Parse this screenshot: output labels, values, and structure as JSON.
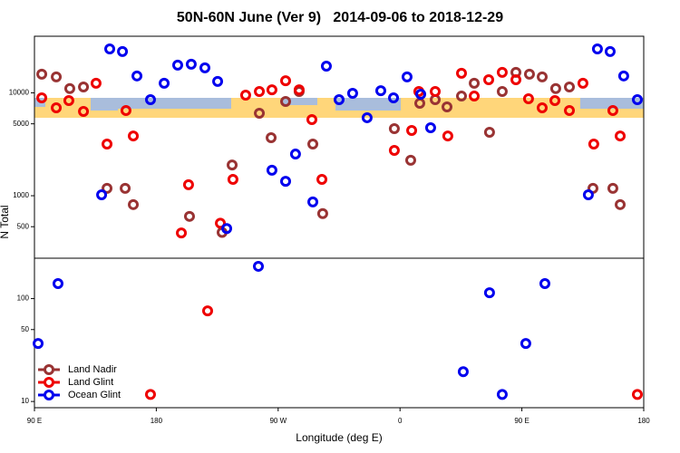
{
  "chart_data": {
    "type": "scatter",
    "title": "50N-60N June (Ver 9)   2014-09-06 to 2018-12-29",
    "xlabel": "Longitude (deg E)",
    "ylabel": "N Total",
    "log_y": true,
    "legend": "lower left",
    "xlim": [
      90,
      540
    ],
    "xticks": [
      {
        "value": 90,
        "label": "90 E"
      },
      {
        "value": 180,
        "label": "180"
      },
      {
        "value": 270,
        "label": "90 W"
      },
      {
        "value": 360,
        "label": "0"
      },
      {
        "value": 450,
        "label": "90 E"
      },
      {
        "value": 540,
        "label": "180"
      }
    ],
    "ylim": [
      8.7,
      35500
    ],
    "yticks": [
      10,
      50,
      100,
      500,
      1000,
      5000,
      10000
    ],
    "series": [
      {
        "name": "Land Nadir",
        "color": "#993333",
        "x": [
          95.4,
          106.1,
          116.1,
          126.2,
          143.6,
          157.0,
          163.0,
          204.5,
          228.6,
          236.0,
          256.1,
          264.8,
          275.5,
          285.5,
          295.6,
          302.9,
          355.8,
          367.9,
          374.6,
          386.0,
          394.7,
          405.4,
          414.8,
          426.1,
          435.5,
          445.6,
          455.6,
          465.0,
          475.0,
          485.1,
          502.5,
          517.2,
          522.6
        ],
        "values": [
          15200,
          14300,
          11000,
          11400,
          1180,
          1180,
          820,
          630,
          440,
          1990,
          6340,
          3660,
          8240,
          10300,
          3180,
          670,
          4490,
          2210,
          7920,
          8590,
          7300,
          9300,
          12400,
          4140,
          10300,
          15800,
          15200,
          14300,
          11000,
          11400,
          1180,
          1180,
          820
        ]
      },
      {
        "name": "Land Glint",
        "color": "#ee0000",
        "x": [
          95.4,
          106.1,
          115.4,
          126.2,
          135.5,
          143.6,
          157.6,
          163.0,
          175.7,
          198.5,
          203.8,
          217.9,
          227.3,
          236.6,
          246.0,
          256.1,
          265.4,
          275.5,
          285.5,
          294.9,
          302.3,
          355.8,
          368.6,
          373.9,
          386.0,
          395.3,
          405.4,
          414.8,
          425.5,
          435.5,
          445.6,
          454.9,
          465.0,
          474.4,
          485.1,
          495.1,
          503.1,
          517.2,
          522.6,
          535.3
        ],
        "values": [
          8950,
          7160,
          8410,
          6590,
          12400,
          3180,
          6730,
          3810,
          11.7,
          435,
          1280,
          76,
          540,
          1440,
          9500,
          10300,
          10700,
          13100,
          10700,
          5500,
          1440,
          2760,
          4310,
          10300,
          10300,
          3810,
          15500,
          9300,
          13400,
          15800,
          13400,
          8770,
          7160,
          8410,
          6730,
          12400,
          3180,
          6730,
          3810,
          11.7
        ]
      },
      {
        "name": "Ocean Glint",
        "color": "#0000ee",
        "x": [
          92.7,
          107.4,
          139.6,
          145.6,
          155.0,
          165.7,
          175.7,
          185.8,
          195.8,
          205.8,
          215.9,
          225.3,
          232.0,
          255.4,
          265.4,
          275.5,
          282.8,
          295.6,
          305.6,
          315.0,
          325.0,
          335.7,
          345.8,
          355.2,
          365.2,
          375.3,
          382.6,
          406.7,
          426.1,
          435.5,
          452.9,
          467.0,
          499.1,
          505.8,
          515.2,
          525.2,
          535.3
        ],
        "values": [
          36.6,
          140,
          1020,
          26700,
          25200,
          14600,
          8590,
          12400,
          18600,
          19000,
          17500,
          12900,
          480,
          206,
          1770,
          1380,
          2540,
          870,
          18200,
          8590,
          9900,
          5730,
          10500,
          8950,
          14300,
          9700,
          4580,
          19.5,
          114,
          11.7,
          36.6,
          140,
          1020,
          26700,
          25200,
          14600,
          8590
        ]
      }
    ]
  }
}
